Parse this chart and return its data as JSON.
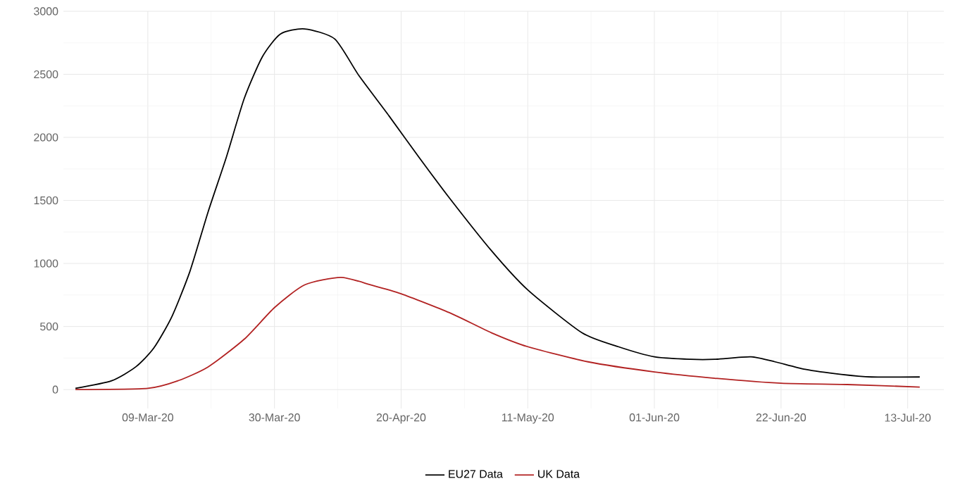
{
  "chart_data": {
    "type": "line",
    "xlim": [
      "2020-02-24",
      "2020-07-19"
    ],
    "ylim": [
      -150,
      3000
    ],
    "xticks": [
      {
        "value": "2020-03-09",
        "label": "09-Mar-20"
      },
      {
        "value": "2020-03-30",
        "label": "30-Mar-20"
      },
      {
        "value": "2020-04-20",
        "label": "20-Apr-20"
      },
      {
        "value": "2020-05-11",
        "label": "11-May-20"
      },
      {
        "value": "2020-06-01",
        "label": "01-Jun-20"
      },
      {
        "value": "2020-06-22",
        "label": "22-Jun-20"
      },
      {
        "value": "2020-07-13",
        "label": "13-Jul-20"
      }
    ],
    "yticks": [
      0,
      500,
      1000,
      1500,
      2000,
      2500,
      3000
    ],
    "grid": true,
    "legend": "bottom",
    "line_style": "solid",
    "marker": "none",
    "series": [
      {
        "name": "EU27 Data",
        "color": "#000000",
        "x": [
          "2020-02-26",
          "2020-03-03",
          "2020-03-07",
          "2020-03-10",
          "2020-03-13",
          "2020-03-16",
          "2020-03-19",
          "2020-03-22",
          "2020-03-25",
          "2020-03-28",
          "2020-03-31",
          "2020-04-04",
          "2020-04-09",
          "2020-04-13",
          "2020-04-18",
          "2020-04-23",
          "2020-04-28",
          "2020-05-05",
          "2020-05-11",
          "2020-05-20",
          "2020-05-26",
          "2020-06-01",
          "2020-06-07",
          "2020-06-11",
          "2020-06-17",
          "2020-06-21",
          "2020-06-26",
          "2020-07-02",
          "2020-07-07",
          "2020-07-15"
        ],
        "values": [
          10,
          70,
          180,
          330,
          580,
          940,
          1410,
          1840,
          2310,
          2640,
          2820,
          2860,
          2780,
          2490,
          2170,
          1840,
          1520,
          1100,
          790,
          450,
          340,
          260,
          240,
          240,
          260,
          220,
          160,
          120,
          100,
          100
        ]
      },
      {
        "name": "UK Data",
        "color": "#b22222",
        "x": [
          "2020-02-26",
          "2020-03-09",
          "2020-03-14",
          "2020-03-19",
          "2020-03-25",
          "2020-03-30",
          "2020-04-04",
          "2020-04-10",
          "2020-04-15",
          "2020-04-20",
          "2020-04-28",
          "2020-05-05",
          "2020-05-11",
          "2020-05-21",
          "2020-06-01",
          "2020-06-11",
          "2020-06-22",
          "2020-07-03",
          "2020-07-15"
        ],
        "values": [
          0,
          10,
          70,
          180,
          400,
          650,
          830,
          890,
          830,
          760,
          610,
          450,
          340,
          220,
          140,
          90,
          50,
          40,
          20
        ]
      }
    ]
  }
}
